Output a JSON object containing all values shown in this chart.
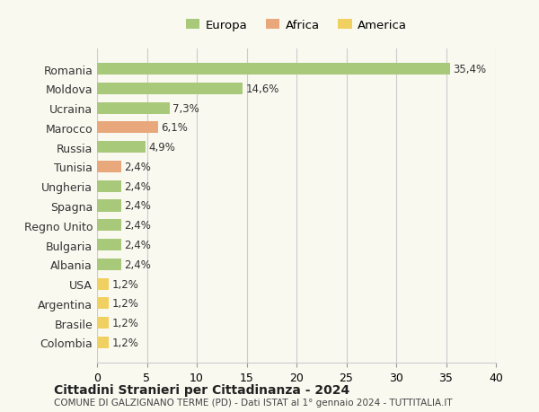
{
  "countries": [
    "Romania",
    "Moldova",
    "Ucraina",
    "Marocco",
    "Russia",
    "Tunisia",
    "Ungheria",
    "Spagna",
    "Regno Unito",
    "Bulgaria",
    "Albania",
    "USA",
    "Argentina",
    "Brasile",
    "Colombia"
  ],
  "values": [
    35.4,
    14.6,
    7.3,
    6.1,
    4.9,
    2.4,
    2.4,
    2.4,
    2.4,
    2.4,
    2.4,
    1.2,
    1.2,
    1.2,
    1.2
  ],
  "labels": [
    "35,4%",
    "14,6%",
    "7,3%",
    "6,1%",
    "4,9%",
    "2,4%",
    "2,4%",
    "2,4%",
    "2,4%",
    "2,4%",
    "2,4%",
    "1,2%",
    "1,2%",
    "1,2%",
    "1,2%"
  ],
  "continents": [
    "Europa",
    "Europa",
    "Europa",
    "Africa",
    "Europa",
    "Africa",
    "Europa",
    "Europa",
    "Europa",
    "Europa",
    "Europa",
    "America",
    "America",
    "America",
    "America"
  ],
  "colors": {
    "Europa": "#a8c87a",
    "Africa": "#e8a87c",
    "America": "#f0d060"
  },
  "legend_colors": {
    "Europa": "#a8c87a",
    "Africa": "#e8a87c",
    "America": "#f0d060"
  },
  "background_color": "#f9f9f0",
  "grid_color": "#cccccc",
  "title": "Cittadini Stranieri per Cittadinanza - 2024",
  "subtitle": "COMUNE DI GALZIGNANO TERME (PD) - Dati ISTAT al 1° gennaio 2024 - TUTTITALIA.IT",
  "xlim": [
    0,
    40
  ],
  "xticks": [
    0,
    5,
    10,
    15,
    20,
    25,
    30,
    35,
    40
  ]
}
